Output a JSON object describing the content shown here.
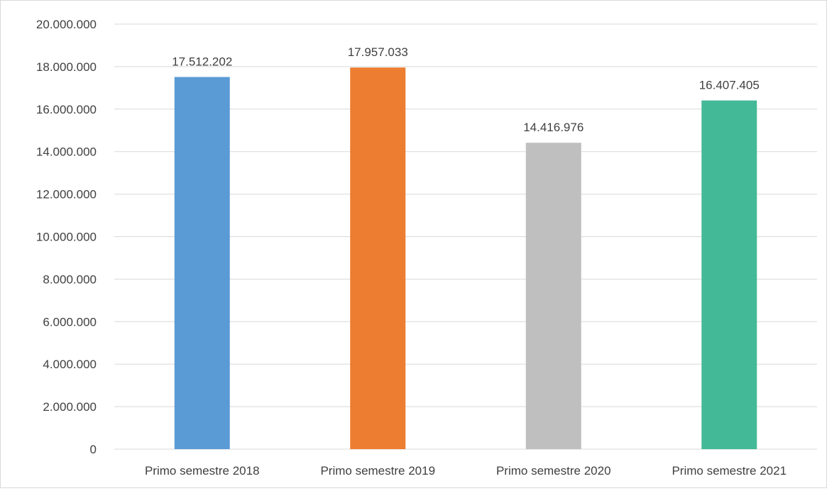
{
  "chart_data": {
    "type": "bar",
    "categories": [
      "Primo semestre 2018",
      "Primo semestre 2019",
      "Primo semestre 2020",
      "Primo semestre 2021"
    ],
    "values": [
      17512202,
      17957033,
      14416976,
      16407405
    ],
    "data_labels": [
      "17.512.202",
      "17.957.033",
      "14.416.976",
      "16.407.405"
    ],
    "colors": [
      "#5b9bd5",
      "#ed7d31",
      "#bfbfbf",
      "#44b997"
    ],
    "ylim": [
      0,
      20000000
    ],
    "yticks": [
      0,
      2000000,
      4000000,
      6000000,
      8000000,
      10000000,
      12000000,
      14000000,
      16000000,
      18000000,
      20000000
    ],
    "ytick_labels": [
      "0",
      "2.000.000",
      "4.000.000",
      "6.000.000",
      "8.000.000",
      "10.000.000",
      "12.000.000",
      "14.000.000",
      "16.000.000",
      "18.000.000",
      "20.000.000"
    ],
    "grid": true,
    "legend": "none",
    "title": "",
    "xlabel": "",
    "ylabel": ""
  }
}
